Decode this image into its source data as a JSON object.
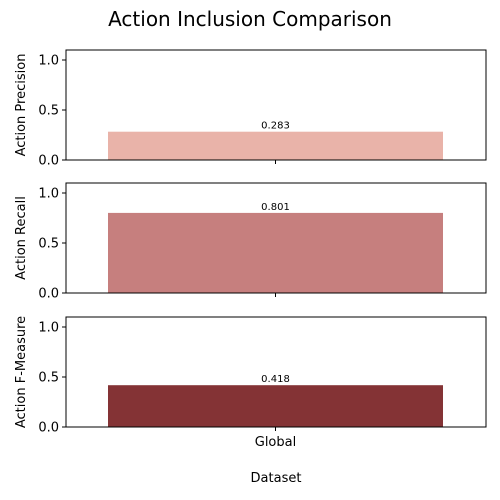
{
  "title": "Action Inclusion Comparison",
  "xlabel": "Dataset",
  "chart_data": [
    {
      "type": "bar",
      "categories": [
        "Global"
      ],
      "values": [
        0.283
      ],
      "value_labels": [
        "0.283"
      ],
      "ylabel": "Action Precision",
      "ylim": [
        0,
        1.1
      ],
      "yticks": [
        "0.0",
        "0.5",
        "1.0"
      ],
      "show_xticklabels": false,
      "color": "#e9b3a9",
      "grid": false
    },
    {
      "type": "bar",
      "categories": [
        "Global"
      ],
      "values": [
        0.801
      ],
      "value_labels": [
        "0.801"
      ],
      "ylabel": "Action Recall",
      "ylim": [
        0,
        1.1
      ],
      "yticks": [
        "0.0",
        "0.5",
        "1.0"
      ],
      "show_xticklabels": false,
      "color": "#c67f7e",
      "grid": false
    },
    {
      "type": "bar",
      "categories": [
        "Global"
      ],
      "values": [
        0.418
      ],
      "value_labels": [
        "0.418"
      ],
      "ylabel": "Action F-Measure",
      "ylim": [
        0,
        1.1
      ],
      "yticks": [
        "0.0",
        "0.5",
        "1.0"
      ],
      "show_xticklabels": true,
      "color": "#843335",
      "grid": false
    }
  ]
}
